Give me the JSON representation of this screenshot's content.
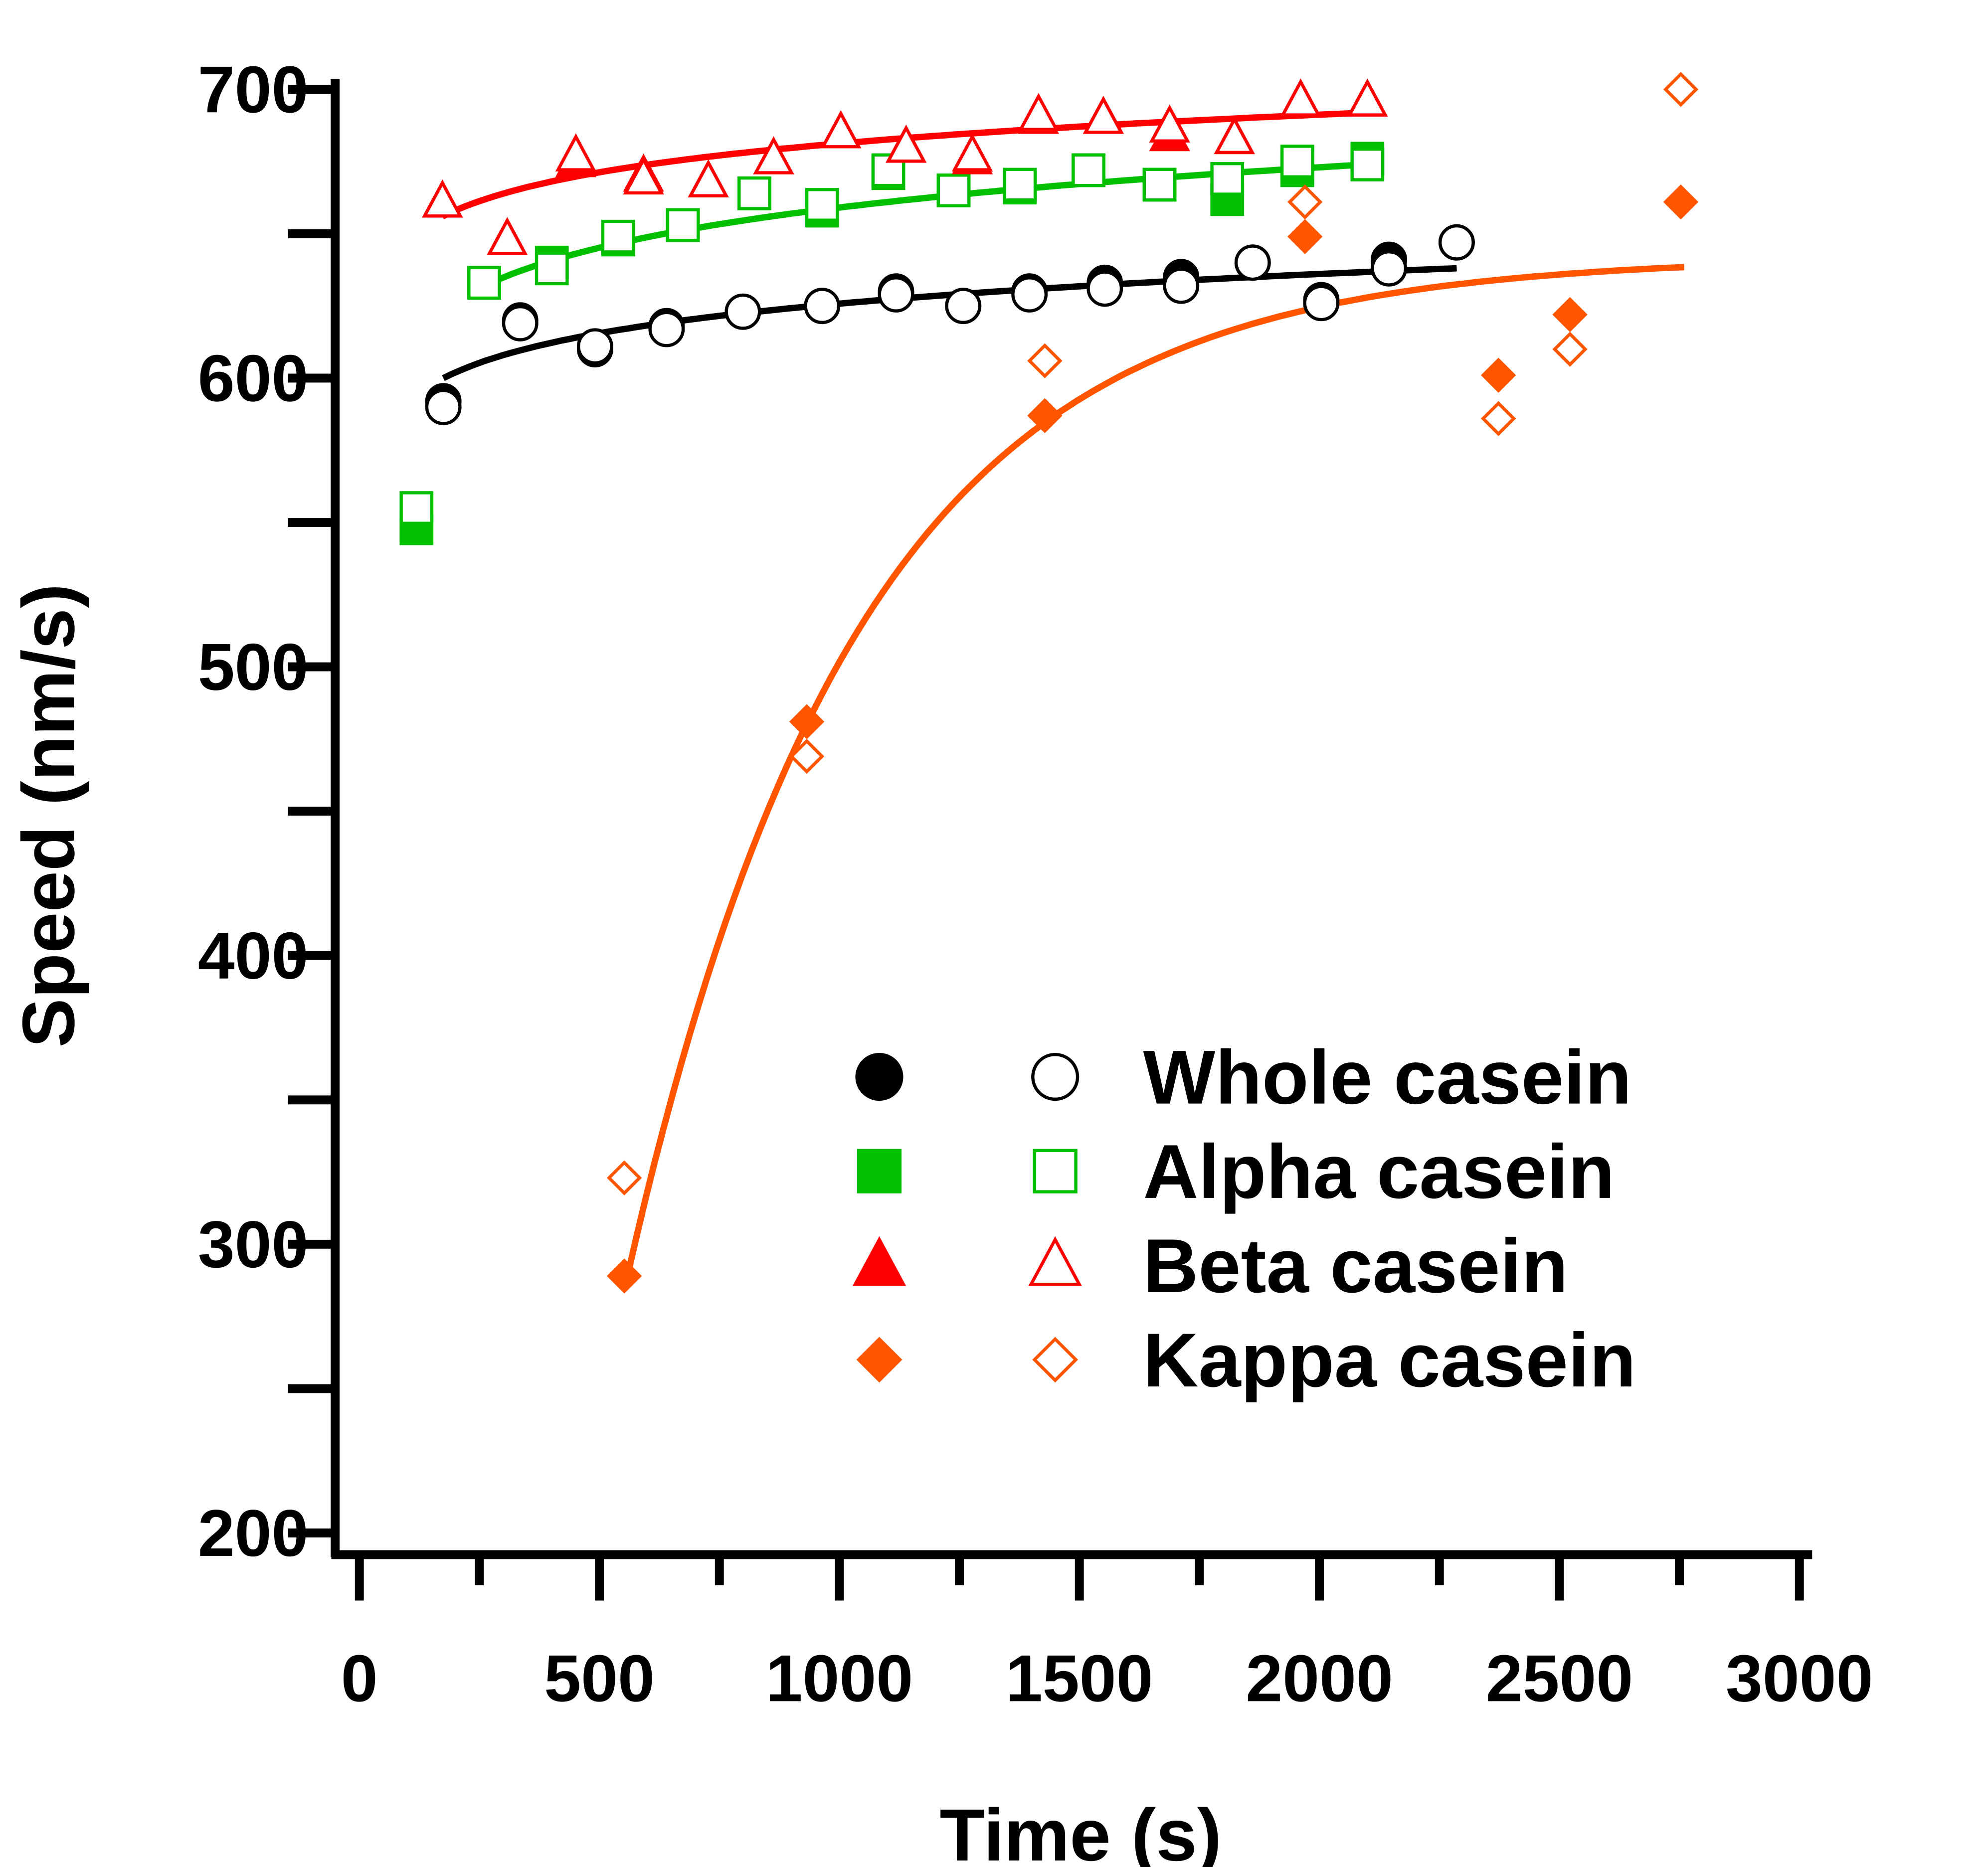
{
  "chart_data": {
    "type": "scatter",
    "xlabel": "Time (s)",
    "ylabel": "Speed (nm/s)",
    "xlim": [
      0,
      3000
    ],
    "ylim": [
      200,
      700
    ],
    "xticks": [
      "0",
      "500",
      "1000",
      "1500",
      "2000",
      "2500",
      "3000"
    ],
    "yticks": [
      "200",
      "300",
      "400",
      "500",
      "600",
      "700"
    ],
    "legend_position": "bottom-right",
    "series": [
      {
        "name": "Whole casein",
        "color": "#000000",
        "marker": "circle",
        "x": [
          175,
          335,
          491,
          640,
          799,
          964,
          1118,
          1258,
          1396,
          1553,
          1712,
          1861,
          2004,
          2145,
          2286
        ],
        "filled": [
          592,
          620,
          610,
          618,
          623,
          625,
          630,
          625,
          630,
          633,
          635,
          640,
          627,
          641,
          647
        ],
        "open": [
          590,
          619,
          611,
          617,
          623,
          625,
          629,
          625,
          629,
          631,
          632,
          640,
          626,
          638,
          647
        ],
        "fit": {
          "model": "log",
          "a_at_x0": 600,
          "x0": 175,
          "b": 14.8,
          "x_end": 2286
        }
      },
      {
        "name": "Alpha casein",
        "color": "#00c000",
        "marker": "square",
        "x": [
          119,
          260,
          401,
          539,
          674,
          823,
          964,
          1102,
          1238,
          1376,
          1519,
          1667,
          1808,
          1954,
          2100
        ],
        "filled": [
          548,
          633,
          640,
          648,
          653,
          664,
          658,
          671,
          665,
          666,
          672,
          667,
          662,
          672,
          676
        ],
        "open": [
          555,
          633,
          638,
          649,
          653,
          664,
          660,
          672,
          665,
          667,
          672,
          667,
          669,
          675,
          674
        ],
        "fit": {
          "model": "log",
          "a_at_x0": 632,
          "x0": 260,
          "b": 20.1,
          "x_end": 2100
        }
      },
      {
        "name": "Beta casein",
        "color": "#ff0000",
        "marker": "triangle",
        "x": [
          173,
          308,
          451,
          592,
          727,
          863,
          1003,
          1139,
          1277,
          1415,
          1550,
          1688,
          1823,
          1961,
          2100
        ],
        "filled": [
          661,
          648,
          675,
          670,
          668,
          676,
          685,
          680,
          676,
          690,
          690,
          684,
          683,
          696,
          696
        ],
        "open": [
          661,
          648,
          677,
          669,
          668,
          676,
          685,
          680,
          677,
          691,
          690,
          687,
          683,
          696,
          696
        ],
        "fit": {
          "model": "log",
          "a_at_x0": 656,
          "x0": 173,
          "b": 14.4,
          "x_end": 2100
        }
      },
      {
        "name": "Kappa casein",
        "color": "#ff5500",
        "marker": "diamond",
        "x": [
          552,
          932,
          1428,
          1970,
          2373,
          2522,
          2753
        ],
        "filled": [
          289,
          481,
          587,
          649,
          601,
          622,
          661
        ],
        "open": [
          323,
          469,
          606,
          661,
          586,
          610,
          700
        ],
        "fit": {
          "model": "exp_plateau",
          "plateau": 642,
          "y0": 290,
          "x0": 560,
          "k": 0.00209,
          "x_end": 2760
        }
      }
    ]
  }
}
